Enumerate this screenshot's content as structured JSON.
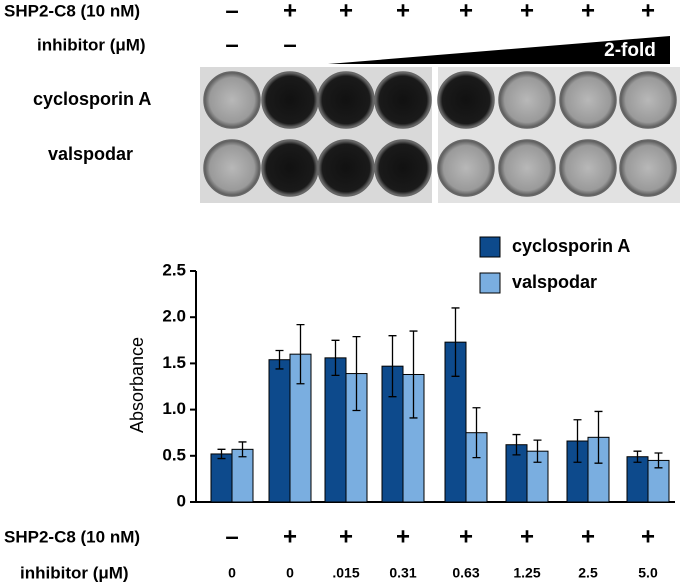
{
  "plate_panel": {
    "shp2_label": "SHP2-C8 (10 nM)",
    "shp2_signs": [
      "–",
      "+",
      "+",
      "+",
      "+",
      "+",
      "+",
      "+"
    ],
    "inhibitor_label": "inhibitor (μM)",
    "inhibitor_signs": [
      "–",
      "–"
    ],
    "gradient_label": "2-fold",
    "row_labels": [
      "cyclosporin A",
      "valspodar"
    ]
  },
  "chart_data": {
    "type": "bar",
    "y_label": "Absorbance",
    "categories": [
      "0",
      "0",
      ".015",
      "0.31",
      "0.63",
      "1.25",
      "2.5",
      "5.0"
    ],
    "category_row_label": "inhibitor (μM)",
    "shp2_row": {
      "label": "SHP2-C8 (10 nM)",
      "values": [
        "–",
        "+",
        "+",
        "+",
        "+",
        "+",
        "+",
        "+"
      ]
    },
    "series": [
      {
        "name": "cyclosporin A",
        "color": "#0d4a8c",
        "values": [
          0.52,
          1.54,
          1.56,
          1.47,
          1.73,
          0.62,
          0.66,
          0.49
        ],
        "errors": [
          0.05,
          0.1,
          0.19,
          0.33,
          0.37,
          0.11,
          0.23,
          0.06
        ]
      },
      {
        "name": "valspodar",
        "color": "#7aaee0",
        "values": [
          0.57,
          1.6,
          1.39,
          1.38,
          0.75,
          0.55,
          0.7,
          0.45
        ],
        "errors": [
          0.08,
          0.32,
          0.4,
          0.47,
          0.27,
          0.12,
          0.28,
          0.08
        ]
      }
    ],
    "ylim": [
      0,
      2.5
    ],
    "yticks": [
      0,
      0.5,
      {
        "value": 1,
        "label": "1.0"
      },
      1.5,
      {
        "value": 2,
        "label": "2.0"
      },
      2.5
    ],
    "legend": "top-right"
  }
}
